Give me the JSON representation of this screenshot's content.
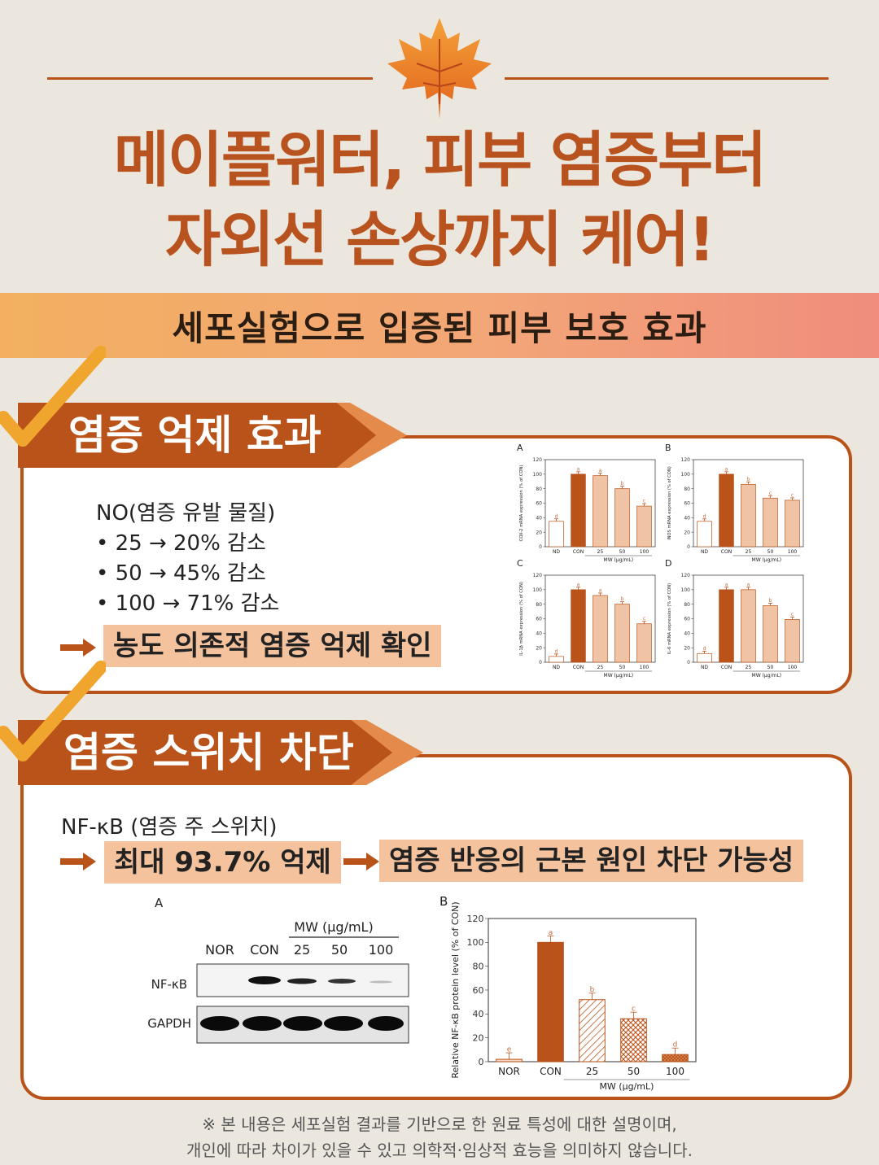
{
  "header": {
    "title_line1": "메이플워터, 피부 염증부터",
    "title_line2": "자외선 손상까지 케어!",
    "banner": "세포실험으로 입증된 피부 보호 효과",
    "leaf_icon": "maple-leaf-icon"
  },
  "colors": {
    "accent": "#b9531a",
    "highlight": "#f4c29d",
    "background": "#ece7de"
  },
  "section1": {
    "tab": "염증 억제 효과",
    "heading": "NO(염증 유발 물질)",
    "bullets": [
      "• 25 → 20% 감소",
      "• 50 → 45% 감소",
      "• 100 → 71% 감소"
    ],
    "conclusion": "농도 의존적 염증 억제 확인"
  },
  "section2": {
    "tab": "염증 스위치 차단",
    "heading": "NF-κB (염증 주 스위치)",
    "result": "최대 93.7% 억제",
    "conclusion": "염증 반응의 근본 원인 차단 가능성"
  },
  "blot": {
    "panel": "A",
    "group_label": "MW (μg/mL)",
    "lanes": [
      "NOR",
      "CON",
      "25",
      "50",
      "100"
    ],
    "rows": [
      "NF-κB",
      "GAPDH"
    ]
  },
  "chart_data": [
    {
      "type": "bar",
      "panel": "A",
      "ylabel": "COX-2 mRNA expression (% of CON)",
      "categories": [
        "ND",
        "CON",
        "25",
        "50",
        "100"
      ],
      "values": [
        35,
        100,
        98,
        80,
        56
      ],
      "letters": [
        "d",
        "a",
        "a",
        "b",
        "c"
      ],
      "xlabel": "MW (μg/mL)",
      "ylim": [
        0,
        120
      ],
      "yticks": [
        0,
        20,
        40,
        60,
        80,
        100,
        120
      ]
    },
    {
      "type": "bar",
      "panel": "B",
      "ylabel": "iNOS mRNA expression (% of CON)",
      "categories": [
        "ND",
        "CON",
        "25",
        "50",
        "100"
      ],
      "values": [
        35,
        100,
        86,
        67,
        64
      ],
      "letters": [
        "d",
        "a",
        "b",
        "c",
        "c"
      ],
      "xlabel": "MW (μg/mL)",
      "ylim": [
        0,
        120
      ],
      "yticks": [
        0,
        20,
        40,
        60,
        80,
        100,
        120
      ]
    },
    {
      "type": "bar",
      "panel": "C",
      "ylabel": "IL-1β mRNA expression (% of CON)",
      "categories": [
        "ND",
        "CON",
        "25",
        "50",
        "100"
      ],
      "values": [
        8,
        100,
        92,
        80,
        53
      ],
      "letters": [
        "d",
        "a",
        "a",
        "b",
        "c"
      ],
      "xlabel": "MW (μg/mL)",
      "ylim": [
        0,
        120
      ],
      "yticks": [
        0,
        20,
        40,
        60,
        80,
        100,
        120
      ]
    },
    {
      "type": "bar",
      "panel": "D",
      "ylabel": "IL-6 mRNA expression (% of CON)",
      "categories": [
        "ND",
        "CON",
        "25",
        "50",
        "100"
      ],
      "values": [
        12,
        100,
        100,
        78,
        59
      ],
      "letters": [
        "d",
        "a",
        "a",
        "b",
        "c"
      ],
      "xlabel": "MW (μg/mL)",
      "ylim": [
        0,
        120
      ],
      "yticks": [
        0,
        20,
        40,
        60,
        80,
        100,
        120
      ]
    },
    {
      "type": "bar",
      "panel": "B",
      "ylabel": "Relative NF-κB protein level (% of CON)",
      "categories": [
        "NOR",
        "CON",
        "25",
        "50",
        "100"
      ],
      "values": [
        2,
        100,
        52,
        36,
        6
      ],
      "letters": [
        "e",
        "a",
        "b",
        "c",
        "d"
      ],
      "xlabel": "MW (μg/mL)",
      "ylim": [
        0,
        120
      ],
      "yticks": [
        0,
        20,
        40,
        60,
        80,
        100,
        120
      ]
    }
  ],
  "footnote": {
    "line1": "※ 본 내용은 세포실험 결과를 기반으로 한 원료 특성에 대한 설명이며,",
    "line2": "개인에 따라 차이가 있을 수 있고 의학적·임상적 효능을 의미하지 않습니다."
  }
}
